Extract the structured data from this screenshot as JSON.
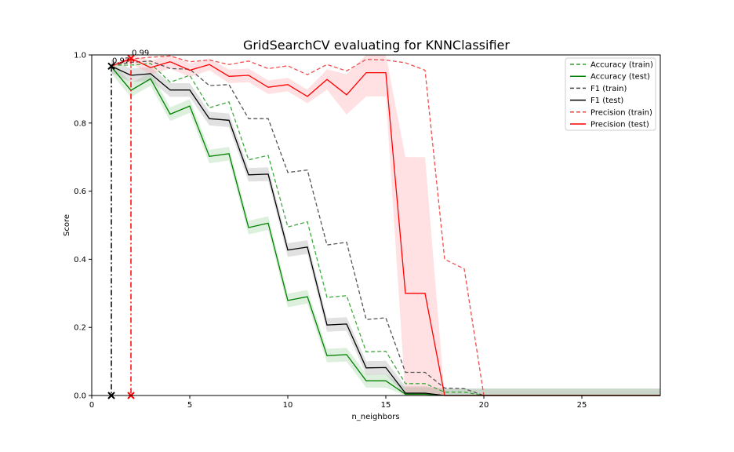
{
  "chart_data": {
    "type": "line",
    "title": "GridSearchCV evaluating for KNNClassifier",
    "xlabel": "n_neighbors",
    "ylabel": "Score",
    "xlim": [
      0,
      29
    ],
    "ylim": [
      0,
      1.0
    ],
    "xticks": [
      0,
      5,
      10,
      15,
      20,
      25
    ],
    "yticks": [
      0.0,
      0.2,
      0.4,
      0.6,
      0.8,
      1.0
    ],
    "ytick_labels": [
      "0.0",
      "0.2",
      "0.4",
      "0.6",
      "0.8",
      "1.0"
    ],
    "legend_position": "upper-right",
    "grid": false,
    "x": [
      1,
      2,
      3,
      4,
      5,
      6,
      7,
      8,
      9,
      10,
      11,
      12,
      13,
      14,
      15,
      16,
      17,
      18,
      19,
      20,
      21,
      22,
      23,
      24,
      25,
      26,
      27,
      28,
      29
    ],
    "series": [
      {
        "name": "Accuracy (train)",
        "style": "dashed",
        "color": "#2ca02c",
        "values": [
          0.97,
          0.97,
          0.975,
          0.92,
          0.94,
          0.845,
          0.862,
          0.692,
          0.705,
          0.495,
          0.51,
          0.288,
          0.293,
          0.128,
          0.13,
          0.035,
          0.035,
          0.01,
          0.01,
          0,
          0,
          0,
          0,
          0,
          0,
          0,
          0,
          0,
          0
        ]
      },
      {
        "name": "Accuracy (test)",
        "style": "solid",
        "color": "#008000",
        "band": 0.02,
        "values": [
          0.965,
          0.896,
          0.93,
          0.826,
          0.85,
          0.702,
          0.71,
          0.493,
          0.506,
          0.279,
          0.29,
          0.117,
          0.12,
          0.043,
          0.043,
          0.004,
          0.004,
          0,
          0,
          0,
          0,
          0,
          0,
          0,
          0,
          0,
          0,
          0,
          0
        ]
      },
      {
        "name": "F1 (train)",
        "style": "dashed",
        "color": "#444444",
        "values": [
          0.97,
          0.978,
          0.982,
          0.96,
          0.958,
          0.91,
          0.913,
          0.813,
          0.813,
          0.655,
          0.662,
          0.442,
          0.45,
          0.223,
          0.228,
          0.068,
          0.068,
          0.022,
          0.02,
          0,
          0,
          0,
          0,
          0,
          0,
          0,
          0,
          0,
          0
        ]
      },
      {
        "name": "F1 (test)",
        "style": "solid",
        "color": "#000000",
        "band": 0.02,
        "values": [
          0.967,
          0.94,
          0.945,
          0.897,
          0.897,
          0.813,
          0.808,
          0.648,
          0.65,
          0.427,
          0.436,
          0.207,
          0.21,
          0.081,
          0.082,
          0.007,
          0.007,
          0,
          0,
          0,
          0,
          0,
          0,
          0,
          0,
          0,
          0,
          0,
          0
        ]
      },
      {
        "name": "Precision (train)",
        "style": "dashed",
        "color": "#f03c3c",
        "values": [
          0.967,
          0.988,
          0.993,
          0.997,
          0.98,
          0.985,
          0.972,
          0.982,
          0.96,
          0.968,
          0.942,
          0.972,
          0.953,
          0.987,
          0.985,
          0.977,
          0.955,
          0.4,
          0.372,
          0,
          0,
          0,
          0,
          0,
          0,
          0,
          0,
          0,
          0
        ]
      },
      {
        "name": "Precision (test)",
        "style": "solid",
        "color": "#ff0000",
        "values": [
          0.967,
          0.99,
          0.963,
          0.98,
          0.955,
          0.972,
          0.937,
          0.94,
          0.905,
          0.913,
          0.878,
          0.928,
          0.883,
          0.948,
          0.948,
          0.3,
          0.3,
          0,
          0,
          0,
          0,
          0,
          0,
          0,
          0,
          0,
          0,
          0,
          0
        ],
        "band_lower": [
          0.967,
          0.975,
          0.943,
          0.96,
          0.935,
          0.955,
          0.917,
          0.92,
          0.885,
          0.893,
          0.858,
          0.898,
          0.825,
          0.878,
          0.878,
          0.0,
          0.0,
          0,
          0,
          0,
          0,
          0,
          0,
          0,
          0,
          0,
          0,
          0,
          0
        ],
        "band_upper": [
          0.967,
          1.0,
          0.983,
          1.0,
          0.975,
          0.99,
          0.957,
          0.96,
          0.925,
          0.933,
          0.898,
          0.958,
          0.943,
          1.0,
          1.0,
          0.7,
          0.7,
          0,
          0,
          0,
          0,
          0,
          0,
          0,
          0,
          0,
          0,
          0,
          0
        ]
      }
    ],
    "best_points": [
      {
        "label": "0.97",
        "x": 1,
        "y": 0.967,
        "color": "#000000"
      },
      {
        "label": "0.99",
        "x": 2,
        "y": 0.99,
        "color": "#ff0000"
      }
    ]
  }
}
